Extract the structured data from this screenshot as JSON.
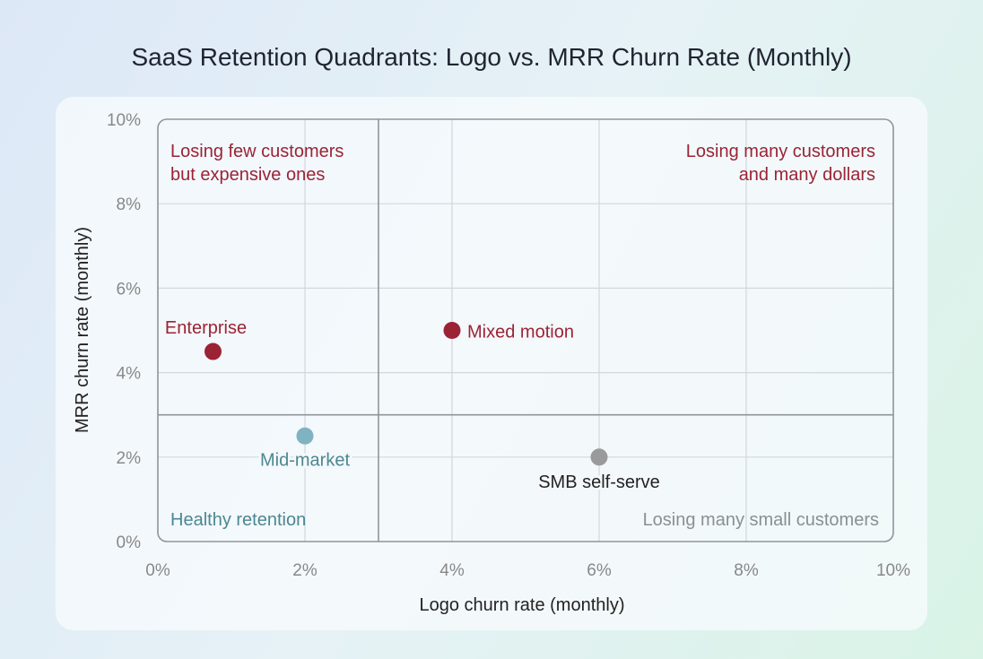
{
  "chart_data": {
    "type": "scatter",
    "title": "SaaS Retention Quadrants: Logo vs. MRR Churn Rate (Monthly)",
    "xlabel": "Logo churn rate (monthly)",
    "ylabel": "MRR churn rate (monthly)",
    "xlim": [
      0,
      10
    ],
    "ylim": [
      0,
      10
    ],
    "x_ticks": [
      "0%",
      "2%",
      "4%",
      "6%",
      "8%",
      "10%"
    ],
    "y_ticks": [
      "0%",
      "2%",
      "4%",
      "6%",
      "8%",
      "10%"
    ],
    "grid": true,
    "thresholds": {
      "x": 3,
      "y": 3
    },
    "points": [
      {
        "label": "Enterprise",
        "x": 0.75,
        "y": 4.5,
        "color": "#9b2335"
      },
      {
        "label": "Mid-market",
        "x": 2,
        "y": 2.5,
        "color": "#7fb3c2"
      },
      {
        "label": "Mixed motion",
        "x": 4,
        "y": 5,
        "color": "#9b2335"
      },
      {
        "label": "SMB self-serve",
        "x": 6,
        "y": 2,
        "color": "#9a9a9a"
      }
    ],
    "quadrant_labels": {
      "top_left": [
        "Losing few customers",
        "but expensive ones"
      ],
      "top_right": [
        "Losing many customers",
        "and many dollars"
      ],
      "bottom_left": "Healthy retention",
      "bottom_right": "Losing many small customers"
    },
    "colors": {
      "red": "#9b2335",
      "teal_text": "#4b8792",
      "gray_text": "#8a8f94"
    }
  }
}
